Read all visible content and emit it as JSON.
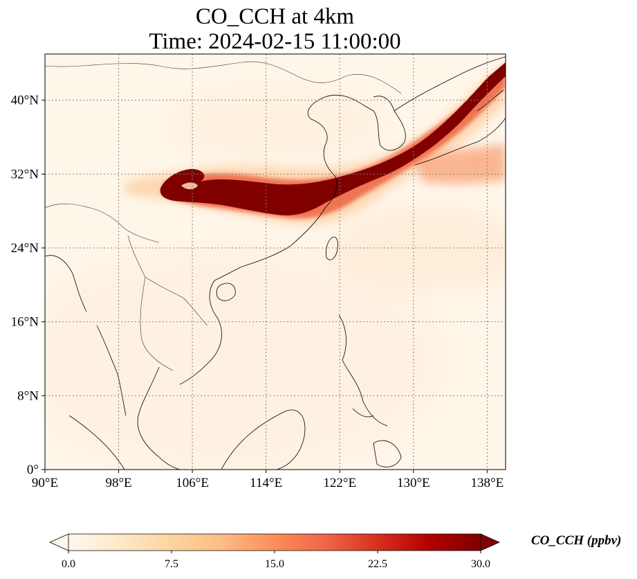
{
  "title": {
    "line1": "CO_CCH at 4km",
    "line2": "Time: 2024-02-15 11:00:00"
  },
  "map": {
    "lon_range": [
      90,
      140
    ],
    "lat_range": [
      0,
      45
    ],
    "lon_ticks": [
      {
        "value": 90,
        "label": "90°E"
      },
      {
        "value": 98,
        "label": "98°E"
      },
      {
        "value": 106,
        "label": "106°E"
      },
      {
        "value": 114,
        "label": "114°E"
      },
      {
        "value": 122,
        "label": "122°E"
      },
      {
        "value": 130,
        "label": "130°E"
      },
      {
        "value": 138,
        "label": "138°E"
      }
    ],
    "lat_ticks": [
      {
        "value": 0,
        "label": "0°"
      },
      {
        "value": 8,
        "label": "8°N"
      },
      {
        "value": 16,
        "label": "16°N"
      },
      {
        "value": 24,
        "label": "24°N"
      },
      {
        "value": 32,
        "label": "32°N"
      },
      {
        "value": 40,
        "label": "40°N"
      }
    ],
    "gridlines": true
  },
  "colorbar": {
    "label": "CO_CCH (ppbv)",
    "min": 0,
    "max": 30,
    "ticks": [
      "0.0",
      "7.5",
      "15.0",
      "22.5",
      "30.0"
    ],
    "extend": "both",
    "colormap": [
      "#fff7ec",
      "#fee8c8",
      "#fdd49e",
      "#fdbb84",
      "#fc8d59",
      "#ef6548",
      "#d7301f",
      "#b30000",
      "#7f0000"
    ]
  }
}
